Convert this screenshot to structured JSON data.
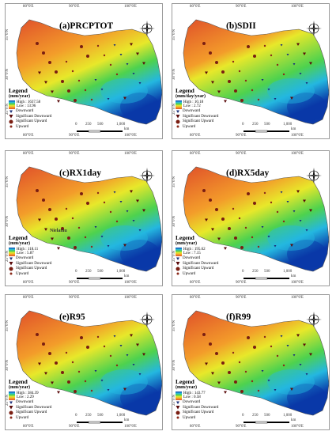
{
  "panels": [
    {
      "id": "a",
      "title": "(a)PRCPTOT",
      "high": "High : 1637.58",
      "low": "Low : 13.96",
      "unit": "(mm/year)"
    },
    {
      "id": "b",
      "title": "(b)SDII",
      "high": "High : 10.18",
      "low": "Low : 2.72",
      "unit": "(mm/day/year)"
    },
    {
      "id": "c",
      "title": "(c)RX1day",
      "high": "High : 118.11",
      "low": "Low : 5.87",
      "unit": "(mm/year)"
    },
    {
      "id": "d",
      "title": "(d)RX5day",
      "high": "High : 195.62",
      "low": "Low : 7.15",
      "unit": "(mm/year)"
    },
    {
      "id": "e",
      "title": "(e)R95",
      "high": "High : 384.39",
      "low": "Low : 2.29",
      "unit": "(mm/year)"
    },
    {
      "id": "f",
      "title": "(f)R99",
      "high": "High : 143.77",
      "low": "Low : 0.58",
      "unit": "(mm/year)"
    }
  ],
  "legend": {
    "title": "Legend",
    "items": [
      "Downward",
      "Significant Downward",
      "Significant Upward",
      "Upward"
    ]
  },
  "scale": {
    "labels": [
      "0",
      "250",
      "500",
      "1,000"
    ],
    "unit": "km"
  },
  "ticks": {
    "lon": [
      "80°0'E",
      "90°0'E",
      "100°0'E"
    ],
    "lat": [
      "35°0'N",
      "30°0'N",
      "25°0'N"
    ],
    "lat_right": [
      "40°0'N",
      "35°0'N",
      "30°0'N",
      "25°0'N"
    ]
  },
  "compass_letters": {
    "n": "N",
    "s": "S",
    "e": "E",
    "w": "W"
  },
  "station_label": "Nielamu",
  "colors": {
    "high": "#0a39a8",
    "low": "#e0502a",
    "marker": "#7a1e12"
  }
}
